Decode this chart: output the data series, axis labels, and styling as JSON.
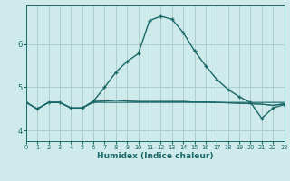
{
  "xlabel": "Humidex (Indice chaleur)",
  "background_color": "#ceeaea",
  "grid_color": "#aecece",
  "line_color": "#1a6868",
  "x_ticks": [
    0,
    1,
    2,
    3,
    4,
    5,
    6,
    7,
    8,
    9,
    10,
    11,
    12,
    13,
    14,
    15,
    16,
    17,
    18,
    19,
    20,
    21,
    22,
    23
  ],
  "y_ticks": [
    4,
    5,
    6
  ],
  "xlim": [
    0,
    23
  ],
  "ylim": [
    3.75,
    6.9
  ],
  "main_series": [
    4.65,
    4.5,
    4.65,
    4.65,
    4.52,
    4.52,
    4.68,
    5.0,
    5.35,
    5.6,
    5.78,
    6.55,
    6.65,
    6.58,
    6.27,
    5.85,
    5.5,
    5.18,
    4.95,
    4.78,
    4.65,
    4.28,
    4.52,
    4.6
  ],
  "flat_series1": [
    4.65,
    4.5,
    4.65,
    4.65,
    4.52,
    4.52,
    4.65,
    4.65,
    4.65,
    4.65,
    4.65,
    4.65,
    4.65,
    4.65,
    4.65,
    4.65,
    4.65,
    4.65,
    4.65,
    4.65,
    4.65,
    4.65,
    4.65,
    4.65
  ],
  "flat_series2": [
    4.65,
    4.5,
    4.65,
    4.65,
    4.52,
    4.52,
    4.67,
    4.68,
    4.7,
    4.68,
    4.67,
    4.67,
    4.67,
    4.67,
    4.67,
    4.66,
    4.66,
    4.65,
    4.64,
    4.63,
    4.62,
    4.61,
    4.58,
    4.62
  ],
  "flat_series3": [
    4.65,
    4.5,
    4.65,
    4.65,
    4.52,
    4.52,
    4.67,
    4.68,
    4.7,
    4.68,
    4.67,
    4.67,
    4.67,
    4.67,
    4.67,
    4.66,
    4.66,
    4.65,
    4.64,
    4.63,
    4.62,
    4.61,
    4.58,
    4.62
  ]
}
